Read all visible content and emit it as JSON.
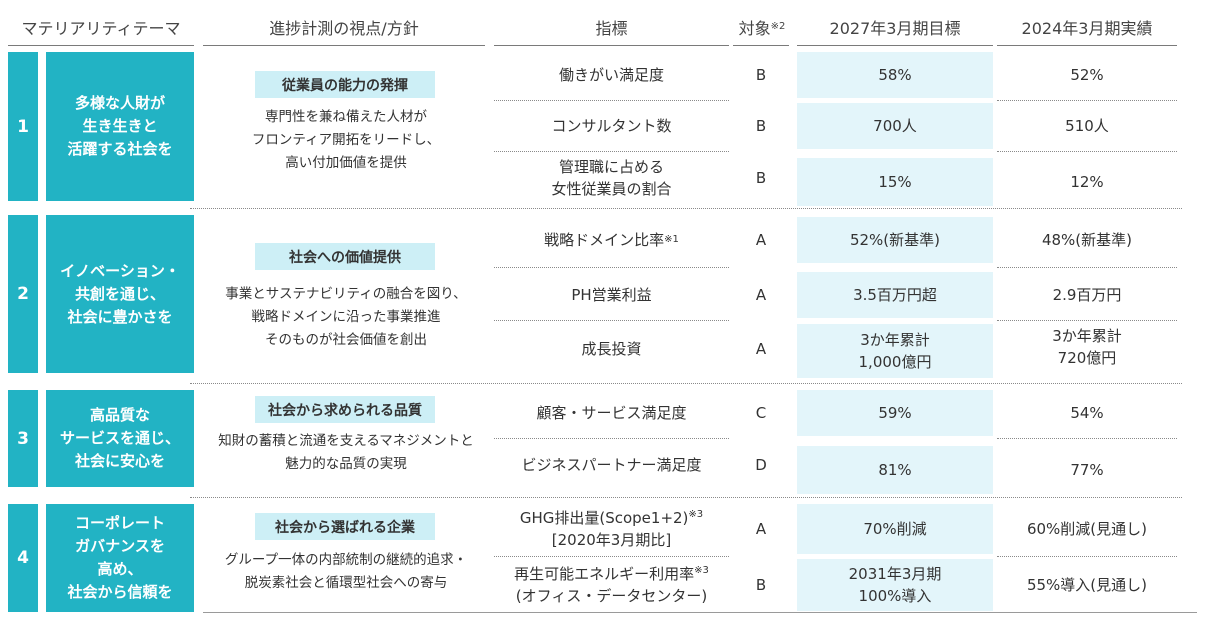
{
  "headers": {
    "materiality": "マテリアリティテーマ",
    "viewpoint": "進捗計測の視点/方針",
    "indicator": "指標",
    "target": "対象",
    "target_note": "※2",
    "goal": "2027年3月期目標",
    "actual": "2024年3月期実績"
  },
  "themes": [
    {
      "number": "1",
      "lines": [
        "多様な人財が",
        "生き生きと",
        "活躍する社会を"
      ],
      "policy_title": "従業員の能力の発揮",
      "policy_lines": [
        "専門性を兼ね備えた人材が",
        "フロンティア開拓をリードし、",
        "高い付加価値を提供"
      ],
      "rows": [
        {
          "indicator": [
            "働きがい満足度"
          ],
          "note": "",
          "target": "B",
          "goal": [
            "58%"
          ],
          "actual": [
            "52%"
          ]
        },
        {
          "indicator": [
            "コンサルタント数"
          ],
          "note": "",
          "target": "B",
          "goal": [
            "700人"
          ],
          "actual": [
            "510人"
          ]
        },
        {
          "indicator": [
            "管理職に占める",
            "女性従業員の割合"
          ],
          "note": "",
          "target": "B",
          "goal": [
            "15%"
          ],
          "actual": [
            "12%"
          ]
        }
      ]
    },
    {
      "number": "2",
      "lines": [
        "イノベーション・",
        "共創を通じ、",
        "社会に豊かさを"
      ],
      "policy_title": "社会への価値提供",
      "policy_lines": [
        "事業とサステナビリティの融合を図り、",
        "戦略ドメインに沿った事業推進",
        "そのものが社会価値を創出"
      ],
      "rows": [
        {
          "indicator": [
            "戦略ドメイン比率"
          ],
          "note": "※1",
          "target": "A",
          "goal": [
            "52%(新基準)"
          ],
          "actual": [
            "48%(新基準)"
          ]
        },
        {
          "indicator": [
            "PH営業利益"
          ],
          "note": "",
          "target": "A",
          "goal": [
            "3.5百万円超"
          ],
          "actual": [
            "2.9百万円"
          ]
        },
        {
          "indicator": [
            "成長投資"
          ],
          "note": "",
          "target": "A",
          "goal": [
            "3か年累計",
            "1,000億円"
          ],
          "actual": [
            "3か年累計",
            "720億円"
          ]
        }
      ]
    },
    {
      "number": "3",
      "lines": [
        "高品質な",
        "サービスを通じ、",
        "社会に安心を"
      ],
      "policy_title": "社会から求められる品質",
      "policy_lines": [
        "知財の蓄積と流通を支えるマネジメントと",
        "魅力的な品質の実現"
      ],
      "rows": [
        {
          "indicator": [
            "顧客・サービス満足度"
          ],
          "note": "",
          "target": "C",
          "goal": [
            "59%"
          ],
          "actual": [
            "54%"
          ]
        },
        {
          "indicator": [
            "ビジネスパートナー満足度"
          ],
          "note": "",
          "target": "D",
          "goal": [
            "81%"
          ],
          "actual": [
            "77%"
          ]
        }
      ]
    },
    {
      "number": "4",
      "lines": [
        "コーポレート",
        "ガバナンスを",
        "高め、",
        "社会から信頼を"
      ],
      "policy_title": "社会から選ばれる企業",
      "policy_lines": [
        "グループ一体の内部統制の継続的追求・",
        "脱炭素社会と循環型社会への寄与"
      ],
      "rows": [
        {
          "indicator": [
            "GHG排出量(Scope1+2)",
            "[2020年3月期比]"
          ],
          "note": "※3",
          "target": "A",
          "goal": [
            "70%削減"
          ],
          "actual": [
            "60%削減(見通し)"
          ]
        },
        {
          "indicator": [
            "再生可能エネルギー利用率",
            "(オフィス・データセンター)"
          ],
          "note": "※3",
          "target": "B",
          "goal": [
            "2031年3月期",
            "100%導入"
          ],
          "actual": [
            "55%導入(見通し)"
          ]
        }
      ]
    }
  ]
}
